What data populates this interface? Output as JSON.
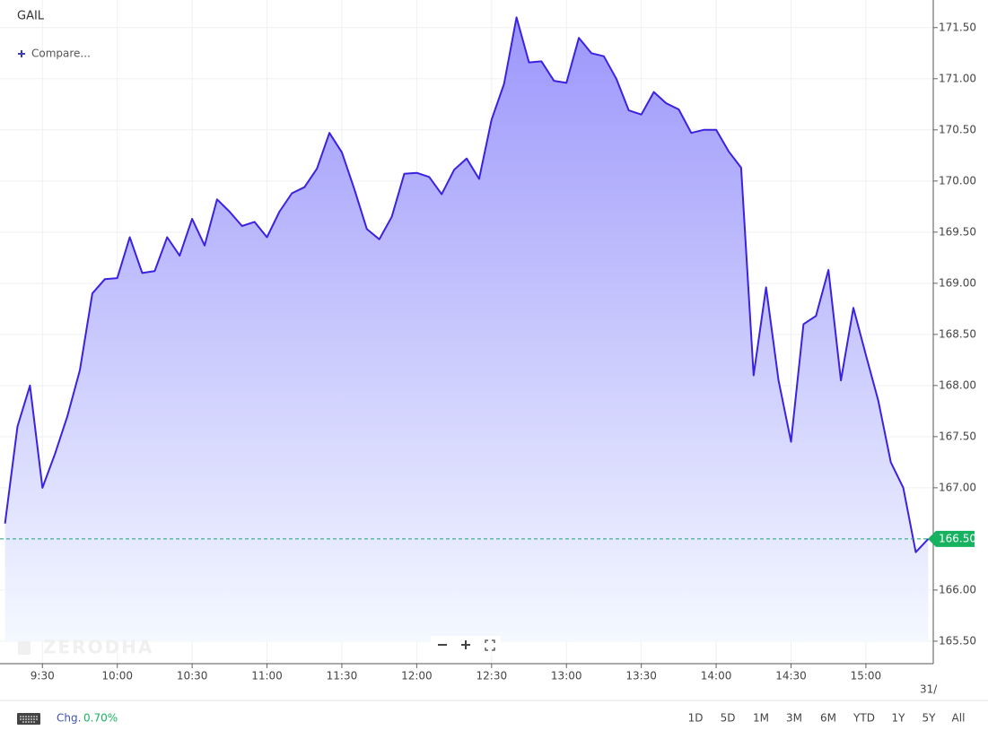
{
  "chart_data": {
    "type": "area",
    "title": "GAIL",
    "x": [
      "9:15",
      "9:20",
      "9:25",
      "9:30",
      "9:35",
      "9:40",
      "9:45",
      "9:50",
      "9:55",
      "10:00",
      "10:05",
      "10:10",
      "10:15",
      "10:20",
      "10:25",
      "10:30",
      "10:35",
      "10:40",
      "10:45",
      "10:50",
      "10:55",
      "11:00",
      "11:05",
      "11:10",
      "11:15",
      "11:20",
      "11:25",
      "11:30",
      "11:35",
      "11:40",
      "11:45",
      "11:50",
      "11:55",
      "12:00",
      "12:05",
      "12:10",
      "12:15",
      "12:20",
      "12:25",
      "12:30",
      "12:35",
      "12:40",
      "12:45",
      "12:50",
      "12:55",
      "13:00",
      "13:05",
      "13:10",
      "13:15",
      "13:20",
      "13:25",
      "13:30",
      "13:35",
      "13:40",
      "13:45",
      "13:50",
      "13:55",
      "14:00",
      "14:05",
      "14:10",
      "14:15",
      "14:20",
      "14:25",
      "14:30",
      "14:35",
      "14:40",
      "14:45",
      "14:50",
      "14:55",
      "15:00",
      "15:05",
      "15:10",
      "15:15",
      "15:20",
      "15:25"
    ],
    "values": [
      166.65,
      167.6,
      168.0,
      167.0,
      167.33,
      167.7,
      168.15,
      168.9,
      169.04,
      169.05,
      169.45,
      169.1,
      169.12,
      169.45,
      169.27,
      169.63,
      169.37,
      169.82,
      169.7,
      169.56,
      169.6,
      169.45,
      169.7,
      169.88,
      169.94,
      170.12,
      170.47,
      170.28,
      169.92,
      169.53,
      169.43,
      169.65,
      170.07,
      170.08,
      170.04,
      169.87,
      170.11,
      170.22,
      170.02,
      170.6,
      170.95,
      171.6,
      171.16,
      171.17,
      170.98,
      170.96,
      171.4,
      171.25,
      171.22,
      171.0,
      170.69,
      170.65,
      170.87,
      170.76,
      170.7,
      170.47,
      170.5,
      170.5,
      170.29,
      170.13,
      168.1,
      168.96,
      168.05,
      167.45,
      168.6,
      168.68,
      169.13,
      168.05,
      168.76,
      168.3,
      167.85,
      167.25,
      167.0,
      166.37,
      166.5
    ],
    "color": "#3a22e0",
    "xlim": [
      "9:13",
      "15:27"
    ],
    "xticks": [
      "9:30",
      "10:00",
      "10:30",
      "11:00",
      "11:30",
      "12:00",
      "12:30",
      "13:00",
      "13:30",
      "14:00",
      "14:30",
      "15:00"
    ],
    "ylim": [
      165.28,
      171.77
    ],
    "yticks": [
      {
        "value": 165.5,
        "label": "165.50"
      },
      {
        "value": 166,
        "label": "166.00"
      },
      {
        "value": 166.5,
        "label": "166.50"
      },
      {
        "value": 167,
        "label": "167.00"
      },
      {
        "value": 167.5,
        "label": "167.50"
      },
      {
        "value": 168,
        "label": "168.00"
      },
      {
        "value": 168.5,
        "label": "168.50"
      },
      {
        "value": 169,
        "label": "169.00"
      },
      {
        "value": 169.5,
        "label": "169.50"
      },
      {
        "value": 170,
        "label": "170.00"
      },
      {
        "value": 170.5,
        "label": "170.50"
      },
      {
        "value": 171,
        "label": "171.00"
      },
      {
        "value": 171.5,
        "label": "171.50"
      }
    ],
    "grid": true,
    "last_price": {
      "value": 166.5,
      "label": "166.50"
    }
  },
  "ui": {
    "compare": "Compare...",
    "watermark": "ZERODHA",
    "date_partial": "31/",
    "chg_label": "Chg.",
    "chg_value": "0.70%",
    "ranges": [
      "1D",
      "5D",
      "1M",
      "3M",
      "6M",
      "YTD",
      "1Y",
      "5Y",
      "All"
    ]
  }
}
